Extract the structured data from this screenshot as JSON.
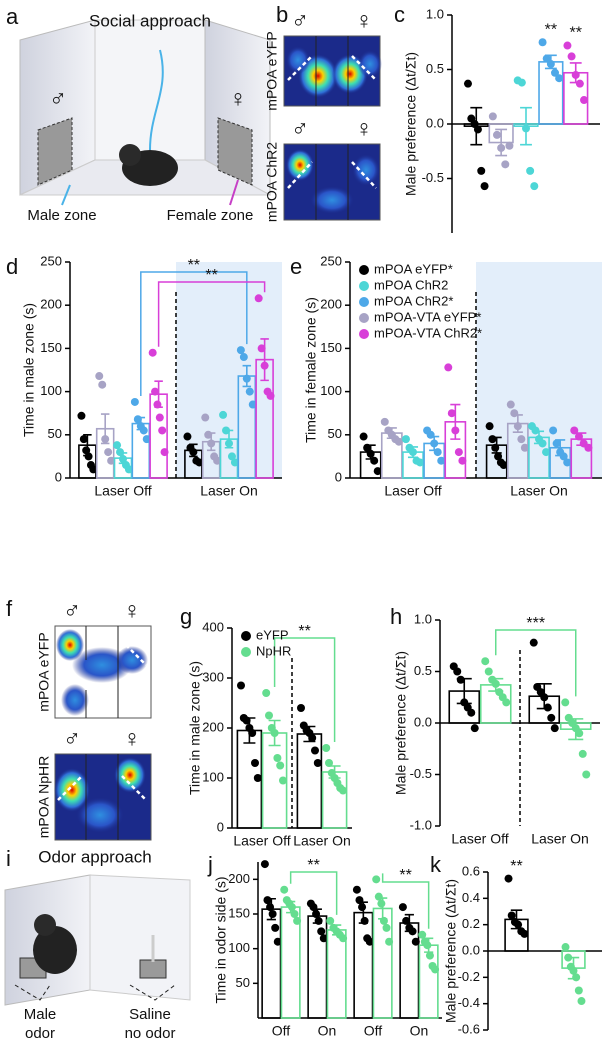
{
  "panels": {
    "a": "a",
    "b": "b",
    "f": "f",
    "i": "i"
  },
  "illustrations": {
    "a": {
      "title": "Social approach",
      "male": "♂",
      "female": "♀",
      "male_zone": "Male zone",
      "female_zone": "Female zone"
    },
    "b": {
      "top_label": "mPOA eYFP",
      "bottom_label": "mPOA ChR2",
      "male": "♂",
      "female": "♀"
    },
    "f": {
      "top_label": "mPOA eYFP",
      "bottom_label": "mPOA NpHR",
      "male": "♂",
      "female": "♀"
    },
    "i": {
      "title": "Odor approach",
      "left": [
        "Male",
        "odor"
      ],
      "right": [
        "Saline",
        "no odor"
      ]
    }
  },
  "chart_data": [
    {
      "type": "bar",
      "panel": "c",
      "y_label": "Male preference (Δt/Σt)",
      "categories": [
        null
      ],
      "ylim": [
        -1,
        1
      ],
      "yticks": [
        {
          "value": 1,
          "label": "1.0"
        },
        0.5,
        {
          "value": 0,
          "label": "0.0"
        },
        -0.5
      ],
      "series": [
        {
          "color": "#000000",
          "values": [
            -0.02
          ],
          "errors": [
            0.17
          ],
          "points": [
            [
              0.37,
              0.05,
              0.0,
              -0.05,
              -0.43,
              -0.57
            ]
          ]
        },
        {
          "color": "#a7a3c5",
          "values": [
            -0.17
          ],
          "errors": [
            0.12
          ],
          "points": [
            [
              0.07,
              -0.1,
              -0.22,
              -0.37,
              -0.2
            ]
          ]
        },
        {
          "color": "#4dd6d6",
          "values": [
            -0.02
          ],
          "errors": [
            0.17
          ],
          "points": [
            [
              0.4,
              0.38,
              -0.04,
              -0.43,
              -0.57
            ]
          ]
        },
        {
          "color": "#4ea8e8",
          "values": [
            0.57
          ],
          "errors": [
            0.06
          ],
          "points": [
            [
              0.75,
              0.6,
              0.55,
              0.47,
              0.42
            ]
          ]
        },
        {
          "color": "#d83fd8",
          "values": [
            0.47
          ],
          "errors": [
            0.09
          ],
          "points": [
            [
              0.72,
              0.62,
              0.45,
              0.37,
              0.22
            ]
          ]
        }
      ],
      "annotations": [
        {
          "text": "**",
          "series": 3,
          "from": 0,
          "to": 0
        },
        {
          "text": "**",
          "series": 4,
          "from": 0,
          "to": 0
        }
      ]
    },
    {
      "type": "bar",
      "panel": "d",
      "y_label": "Time in male zone (s)",
      "categories": [
        "Laser Off",
        "Laser On"
      ],
      "ylim": [
        0,
        250
      ],
      "yticks": [
        0,
        50,
        100,
        150,
        200,
        250
      ],
      "divider": true,
      "shade": "#e3eefa",
      "series": [
        {
          "color": "#000000",
          "values": [
            38,
            32
          ],
          "errors": [
            12,
            7
          ],
          "points": [
            [
              72,
              45,
              32,
              25,
              15,
              10
            ],
            [
              48,
              35,
              30,
              20,
              18
            ]
          ]
        },
        {
          "color": "#a7a3c5",
          "values": [
            57,
            42
          ],
          "errors": [
            17,
            10
          ],
          "points": [
            [
              118,
              108,
              45,
              30,
              20
            ],
            [
              70,
              50,
              40,
              25,
              20
            ]
          ]
        },
        {
          "color": "#4dd6d6",
          "values": [
            23,
            45
          ],
          "errors": [
            6,
            10
          ],
          "points": [
            [
              38,
              30,
              22,
              15,
              10
            ],
            [
              73,
              55,
              40,
              25,
              18
            ]
          ]
        },
        {
          "color": "#4ea8e8",
          "values": [
            63,
            118
          ],
          "errors": [
            7,
            12
          ],
          "points": [
            [
              88,
              68,
              60,
              55,
              45
            ],
            [
              148,
              140,
              115,
              100,
              85
            ]
          ]
        },
        {
          "color": "#d83fd8",
          "values": [
            97,
            137
          ],
          "errors": [
            15,
            24
          ],
          "points": [
            [
              145,
              100,
              85,
              70,
              55,
              30
            ],
            [
              208,
              150,
              130,
              100,
              95
            ]
          ]
        }
      ],
      "annotations": [
        {
          "text": "**",
          "series": 3,
          "from": 0,
          "to": 1
        },
        {
          "text": "**",
          "series": 4,
          "from": 0,
          "to": 1
        }
      ]
    },
    {
      "type": "bar",
      "panel": "e",
      "y_label": "Time in female zone (s)",
      "categories": [
        "Laser Off",
        "Laser On"
      ],
      "ylim": [
        0,
        250
      ],
      "yticks": [
        0,
        50,
        100,
        150,
        200,
        250
      ],
      "divider": true,
      "shade": "#e3eefa",
      "legend": "upper left",
      "legend_order": [
        0,
        2,
        3,
        1,
        4
      ],
      "series": [
        {
          "name": "mPOA eYFP*",
          "color": "#000000",
          "values": [
            30,
            38
          ],
          "errors": [
            8,
            9
          ],
          "points": [
            [
              48,
              35,
              28,
              20,
              8
            ],
            [
              60,
              45,
              35,
              25,
              18,
              15
            ]
          ]
        },
        {
          "name": "mPOA-VTA eYFP*",
          "color": "#a7a3c5",
          "values": [
            52,
            63
          ],
          "errors": [
            6,
            10
          ],
          "points": [
            [
              65,
              55,
              50,
              45,
              42
            ],
            [
              85,
              75,
              60,
              45,
              35
            ]
          ]
        },
        {
          "name": "mPOA ChR2",
          "color": "#4dd6d6",
          "values": [
            30,
            47
          ],
          "errors": [
            6,
            7
          ],
          "points": [
            [
              45,
              35,
              30,
              20,
              18
            ],
            [
              60,
              55,
              45,
              40,
              30
            ]
          ]
        },
        {
          "name": "mPOA ChR2*",
          "color": "#4ea8e8",
          "values": [
            40,
            35
          ],
          "errors": [
            8,
            9
          ],
          "points": [
            [
              55,
              50,
              40,
              30,
              20
            ],
            [
              55,
              40,
              30,
              25,
              18
            ]
          ]
        },
        {
          "name": "mPOA-VTA ChR2*",
          "color": "#d83fd8",
          "values": [
            65,
            45
          ],
          "errors": [
            20,
            7
          ],
          "points": [
            [
              128,
              75,
              55,
              30,
              20
            ],
            [
              55,
              48,
              40,
              35
            ]
          ]
        }
      ]
    },
    {
      "type": "bar",
      "panel": "g",
      "y_label": "Time in male zone (s)",
      "categories": [
        "Laser Off",
        "Laser On"
      ],
      "ylim": [
        0,
        400
      ],
      "yticks": [
        0,
        100,
        200,
        300,
        400
      ],
      "divider": true,
      "legend": "upper left",
      "series": [
        {
          "name": "eYFP",
          "color": "#000000",
          "values": [
            195,
            188
          ],
          "errors": [
            25,
            15
          ],
          "points": [
            [
              285,
              220,
              215,
              200,
              190,
              130,
              100
            ],
            [
              240,
              205,
              195,
              190,
              180,
              155,
              130
            ]
          ]
        },
        {
          "name": "NpHR",
          "color": "#64dd8f",
          "values": [
            190,
            112
          ],
          "errors": [
            25,
            12
          ],
          "points": [
            [
              270,
              225,
              200,
              190,
              140,
              125,
              95
            ],
            [
              160,
              130,
              110,
              100,
              90,
              80,
              75
            ]
          ]
        }
      ],
      "annotations": [
        {
          "text": "**",
          "series": 1,
          "from": 0,
          "to": 1
        }
      ]
    },
    {
      "type": "bar",
      "panel": "h",
      "y_label": "Male preference (Δt/Σt)",
      "categories": [
        "Laser Off",
        "Laser On"
      ],
      "ylim": [
        -1,
        1
      ],
      "yticks": [
        {
          "value": 1,
          "label": "1.0"
        },
        0.5,
        {
          "value": 0,
          "label": "0.0"
        },
        -0.5,
        {
          "value": -1,
          "label": "-1.0"
        }
      ],
      "divider": true,
      "series": [
        {
          "color": "#000000",
          "values": [
            0.31,
            0.26
          ],
          "errors": [
            0.12,
            0.12
          ],
          "points": [
            [
              0.55,
              0.5,
              0.42,
              0.2,
              0.15,
              0.1,
              -0.05
            ],
            [
              0.78,
              0.35,
              0.3,
              0.25,
              0.15,
              0.05,
              -0.05
            ]
          ]
        },
        {
          "color": "#64dd8f",
          "values": [
            0.37,
            -0.06
          ],
          "errors": [
            0.06,
            0.1
          ],
          "points": [
            [
              0.6,
              0.5,
              0.42,
              0.38,
              0.3,
              0.25,
              0.2
            ],
            [
              0.2,
              0.05,
              0.0,
              -0.05,
              -0.1,
              -0.3,
              -0.5
            ]
          ]
        }
      ],
      "annotations": [
        {
          "text": "***",
          "series": 1,
          "from": 0,
          "to": 1
        }
      ]
    },
    {
      "type": "bar",
      "panel": "j",
      "y_label": "Time in odor side (s)",
      "categories": [
        "Off",
        "On",
        "Off",
        "On"
      ],
      "ylim": [
        0,
        225
      ],
      "yticks": [
        50,
        100,
        150,
        200
      ],
      "series": [
        {
          "color": "#000000",
          "values": [
            157,
            147,
            152,
            137
          ],
          "errors": [
            15,
            10,
            15,
            12
          ],
          "points": [
            [
              222,
              170,
              160,
              150,
              130,
              110
            ],
            [
              165,
              160,
              150,
              140,
              125,
              115
            ],
            [
              185,
              170,
              160,
              140,
              115,
              110
            ],
            [
              160,
              140,
              130,
              125,
              110
            ]
          ]
        },
        {
          "color": "#64dd8f",
          "values": [
            160,
            127,
            158,
            105
          ],
          "errors": [
            8,
            7,
            15,
            10
          ],
          "points": [
            [
              185,
              170,
              165,
              160,
              150,
              140
            ],
            [
              140,
              130,
              125,
              120,
              115
            ],
            [
              200,
              175,
              165,
              140,
              130,
              110
            ],
            [
              120,
              110,
              105,
              90,
              75,
              70
            ]
          ]
        }
      ],
      "annotations": [
        {
          "text": "**",
          "series": 1,
          "from": 0,
          "to": 1
        },
        {
          "text": "**",
          "series": 1,
          "from": 2,
          "to": 3
        }
      ]
    },
    {
      "type": "bar",
      "panel": "k",
      "y_label": "Male preference (Δt/Σt)",
      "categories": [
        null,
        null
      ],
      "ylim": [
        -0.6,
        0.6
      ],
      "yticks": [
        0.6,
        0.4,
        0.2,
        {
          "value": 0,
          "label": "0.0"
        },
        -0.2,
        -0.4,
        -0.6
      ],
      "series": [
        {
          "color": "#000000",
          "values": [
            0.24,
            null
          ],
          "errors": [
            0.07,
            null
          ],
          "points": [
            [
              0.55,
              0.27,
              0.22,
              0.2,
              0.15,
              0.13
            ],
            []
          ]
        },
        {
          "color": "#64dd8f",
          "values": [
            null,
            -0.13
          ],
          "errors": [
            null,
            0.08
          ],
          "points": [
            [],
            [
              0.03,
              -0.05,
              -0.12,
              -0.15,
              -0.2,
              -0.3,
              -0.38
            ]
          ]
        }
      ],
      "annotations": [
        {
          "text": "**",
          "series": 0,
          "from": 0,
          "to": 0
        }
      ]
    }
  ]
}
